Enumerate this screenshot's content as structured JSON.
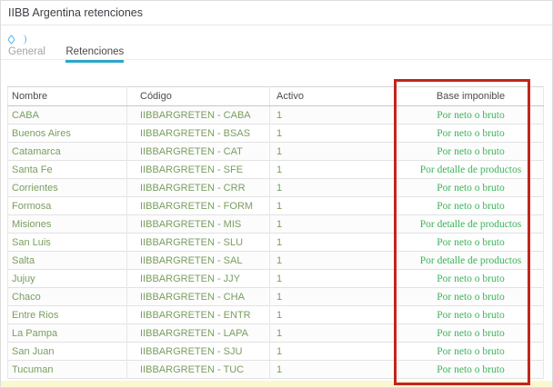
{
  "page": {
    "title": "IIBB Argentina retenciones"
  },
  "icons": [
    {
      "name": "chatter-diamond-icon"
    },
    {
      "name": "chatter-arc-icon"
    }
  ],
  "tabs": [
    {
      "label": "General",
      "active": false
    },
    {
      "label": "Retenciones",
      "active": true
    }
  ],
  "table": {
    "columns": [
      "Nombre",
      "Código",
      "Activo",
      "Base imponible"
    ],
    "rows": [
      {
        "nombre": "CABA",
        "codigo": "IIBBARGRETEN - CABA",
        "activo": "1",
        "base": "Por neto o bruto"
      },
      {
        "nombre": "Buenos Aires",
        "codigo": "IIBBARGRETEN - BSAS",
        "activo": "1",
        "base": "Por neto o bruto"
      },
      {
        "nombre": "Catamarca",
        "codigo": "IIBBARGRETEN - CAT",
        "activo": "1",
        "base": "Por neto o bruto"
      },
      {
        "nombre": "Santa Fe",
        "codigo": "IIBBARGRETEN - SFE",
        "activo": "1",
        "base": "Por detalle de productos"
      },
      {
        "nombre": "Corrientes",
        "codigo": "IIBBARGRETEN - CRR",
        "activo": "1",
        "base": "Por neto o bruto"
      },
      {
        "nombre": "Formosa",
        "codigo": "IIBBARGRETEN - FORM",
        "activo": "1",
        "base": "Por neto o bruto"
      },
      {
        "nombre": "Misiones",
        "codigo": "IIBBARGRETEN - MIS",
        "activo": "1",
        "base": "Por detalle de productos"
      },
      {
        "nombre": "San Luis",
        "codigo": "IIBBARGRETEN - SLU",
        "activo": "1",
        "base": "Por neto o bruto"
      },
      {
        "nombre": "Salta",
        "codigo": "IIBBARGRETEN - SAL",
        "activo": "1",
        "base": "Por detalle de productos"
      },
      {
        "nombre": "Jujuy",
        "codigo": "IIBBARGRETEN - JJY",
        "activo": "1",
        "base": "Por neto o bruto"
      },
      {
        "nombre": "Chaco",
        "codigo": "IIBBARGRETEN - CHA",
        "activo": "1",
        "base": "Por neto o bruto"
      },
      {
        "nombre": "Entre Rios",
        "codigo": "IIBBARGRETEN - ENTR",
        "activo": "1",
        "base": "Por neto o bruto"
      },
      {
        "nombre": "La Pampa",
        "codigo": "IIBBARGRETEN - LAPA",
        "activo": "1",
        "base": "Por neto o bruto"
      },
      {
        "nombre": "San Juan",
        "codigo": "IIBBARGRETEN - SJU",
        "activo": "1",
        "base": "Por neto o bruto"
      },
      {
        "nombre": "Tucuman",
        "codigo": "IIBBARGRETEN - TUC",
        "activo": "1",
        "base": "Por neto o bruto"
      }
    ]
  },
  "annotation": {
    "highlighted_column": "Base imponible",
    "highlight_color": "#c2251d"
  },
  "colors": {
    "tab_accent": "#2aa6c9",
    "row_text": "#7a9e5f",
    "base_value_text": "#3bb45a",
    "icon_blue": "#56aee0"
  }
}
